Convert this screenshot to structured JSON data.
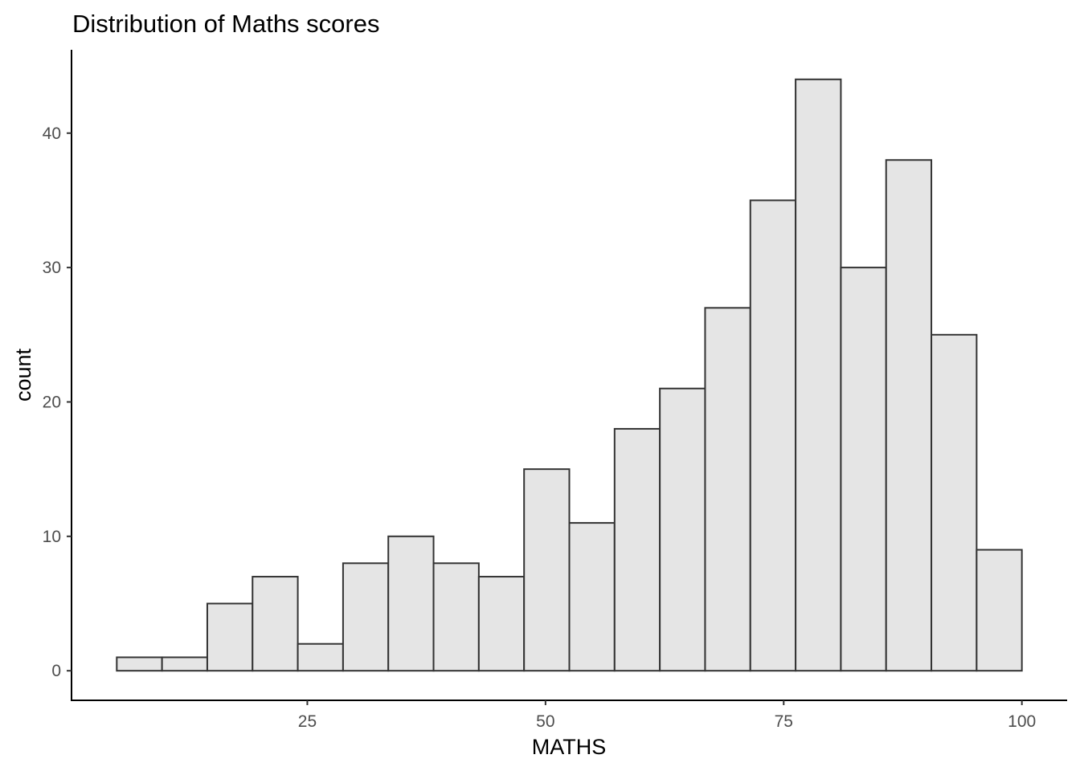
{
  "chart_data": {
    "type": "bar",
    "title": "Distribution of Maths scores",
    "xlabel": "MATHS",
    "ylabel": "count",
    "bins": [
      {
        "x0": 5.0,
        "x1": 9.75,
        "count": 1
      },
      {
        "x0": 9.75,
        "x1": 14.5,
        "count": 1
      },
      {
        "x0": 14.5,
        "x1": 19.25,
        "count": 5
      },
      {
        "x0": 19.25,
        "x1": 24.0,
        "count": 7
      },
      {
        "x0": 24.0,
        "x1": 28.75,
        "count": 2
      },
      {
        "x0": 28.75,
        "x1": 33.5,
        "count": 8
      },
      {
        "x0": 33.5,
        "x1": 38.25,
        "count": 10
      },
      {
        "x0": 38.25,
        "x1": 43.0,
        "count": 8
      },
      {
        "x0": 43.0,
        "x1": 47.75,
        "count": 7
      },
      {
        "x0": 47.75,
        "x1": 52.5,
        "count": 15
      },
      {
        "x0": 52.5,
        "x1": 57.25,
        "count": 11
      },
      {
        "x0": 57.25,
        "x1": 62.0,
        "count": 18
      },
      {
        "x0": 62.0,
        "x1": 66.75,
        "count": 21
      },
      {
        "x0": 66.75,
        "x1": 71.5,
        "count": 27
      },
      {
        "x0": 71.5,
        "x1": 76.25,
        "count": 35
      },
      {
        "x0": 76.25,
        "x1": 81.0,
        "count": 44
      },
      {
        "x0": 81.0,
        "x1": 85.75,
        "count": 30
      },
      {
        "x0": 85.75,
        "x1": 90.5,
        "count": 38
      },
      {
        "x0": 90.5,
        "x1": 95.25,
        "count": 25
      },
      {
        "x0": 95.25,
        "x1": 100.0,
        "count": 9
      }
    ],
    "xlim": [
      0.25,
      104.75
    ],
    "ylim": [
      -2.2,
      46.2
    ],
    "xticks": [
      25,
      50,
      75,
      100
    ],
    "yticks": [
      0,
      10,
      20,
      30,
      40
    ],
    "grid": false,
    "colors": {
      "bar_fill": "#e5e5e5",
      "bar_stroke": "#333333",
      "axis": "#000000"
    }
  }
}
